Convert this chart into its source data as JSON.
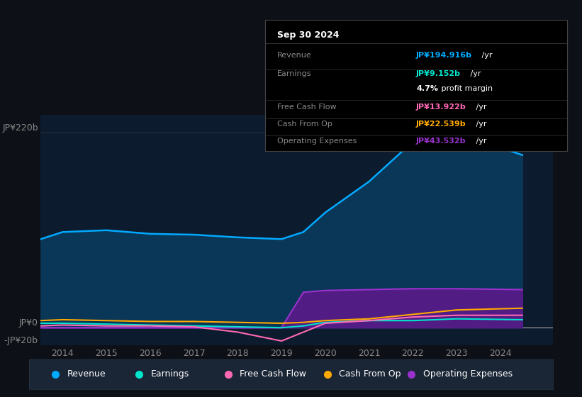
{
  "bg_color": "#0d1117",
  "plot_bg_color": "#0d1b2e",
  "y_label_top": "JP¥220b",
  "y_label_zero": "JP¥0",
  "y_label_neg": "-JP¥20b",
  "ylim": [
    -20,
    240
  ],
  "x_ticks": [
    2014,
    2015,
    2016,
    2017,
    2018,
    2019,
    2020,
    2021,
    2022,
    2023,
    2024
  ],
  "revenue_color": "#00aaff",
  "revenue_fill": "#0a3a5c",
  "earnings_color": "#00e5cc",
  "free_cash_flow_color": "#ff69b4",
  "cash_from_op_color": "#ffaa00",
  "operating_expenses_color": "#9932cc",
  "operating_expenses_fill": "#5a1a8a",
  "legend_items": [
    "Revenue",
    "Earnings",
    "Free Cash Flow",
    "Cash From Op",
    "Operating Expenses"
  ],
  "legend_colors": [
    "#00aaff",
    "#00e5cc",
    "#ff69b4",
    "#ffaa00",
    "#9932cc"
  ],
  "revenue_data": [
    100,
    108,
    110,
    106,
    105,
    102,
    100,
    108,
    130,
    165,
    210,
    220,
    195
  ],
  "earnings_data": [
    5,
    5,
    4,
    3,
    2,
    1,
    0,
    2,
    6,
    8,
    8,
    10,
    9
  ],
  "free_cash_flow_data": [
    2,
    3,
    2,
    2,
    1,
    -5,
    -15,
    -5,
    5,
    8,
    12,
    14,
    14
  ],
  "cash_from_op_data": [
    8,
    9,
    8,
    7,
    7,
    6,
    5,
    6,
    8,
    10,
    15,
    20,
    22
  ],
  "operating_expenses_data": [
    0,
    0,
    0,
    0,
    0,
    0,
    0,
    40,
    42,
    43,
    44,
    44,
    43
  ],
  "x_data": [
    2013.5,
    2014,
    2015,
    2016,
    2017,
    2018,
    2019,
    2019.5,
    2020,
    2021,
    2022,
    2023,
    2024.5
  ],
  "tooltip_rows": [
    {
      "label": "Revenue",
      "value": "JP¥194.916b",
      "suffix": " /yr",
      "color": "#00aaff"
    },
    {
      "label": "Earnings",
      "value": "JP¥9.152b",
      "suffix": " /yr",
      "color": "#00e5cc"
    },
    {
      "label": "",
      "value": "4.7%",
      "suffix": " profit margin",
      "color": "#ffffff"
    },
    {
      "label": "Free Cash Flow",
      "value": "JP¥13.922b",
      "suffix": " /yr",
      "color": "#ff69b4"
    },
    {
      "label": "Cash From Op",
      "value": "JP¥22.539b",
      "suffix": " /yr",
      "color": "#ffaa00"
    },
    {
      "label": "Operating Expenses",
      "value": "JP¥43.532b",
      "suffix": " /yr",
      "color": "#9932cc"
    }
  ]
}
